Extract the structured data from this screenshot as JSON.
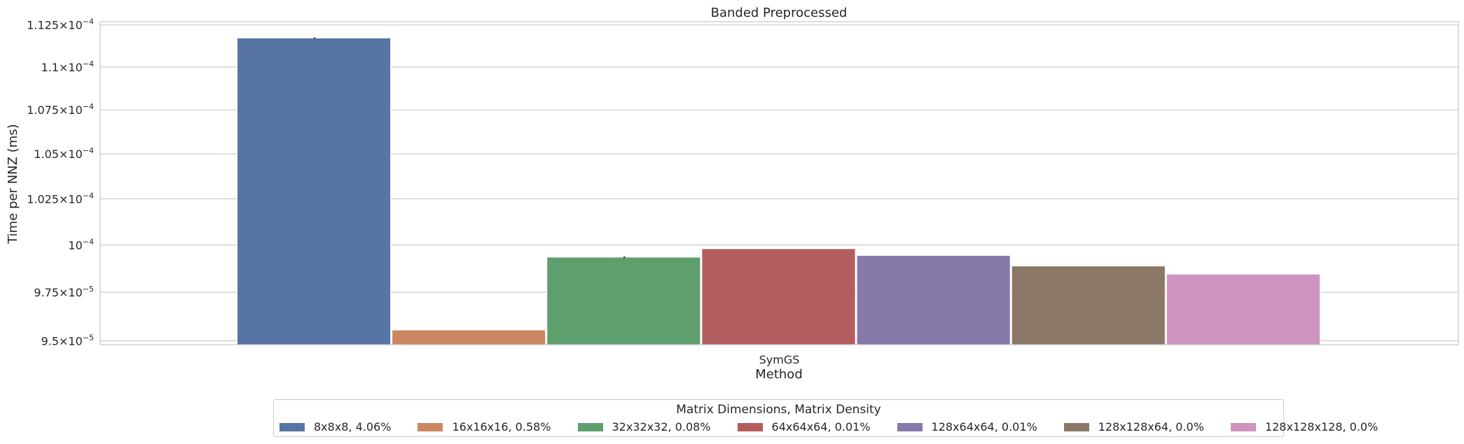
{
  "chart_data": {
    "type": "bar",
    "title": "Banded Preprocessed",
    "xlabel": "Method",
    "ylabel": "Time per NNZ (ms)",
    "categories": [
      "SymGS"
    ],
    "ylim": [
      9.48e-05,
      0.0001127
    ],
    "yscale": "log",
    "yticks": [
      {
        "value": 9.5e-05,
        "mant": "9.5",
        "exp": "−5"
      },
      {
        "value": 9.75e-05,
        "mant": "9.75",
        "exp": "−5"
      },
      {
        "value": 0.0001,
        "mant": "",
        "exp": "−4"
      },
      {
        "value": 0.0001025,
        "mant": "1.025",
        "exp": "−4"
      },
      {
        "value": 0.000105,
        "mant": "1.05",
        "exp": "−4"
      },
      {
        "value": 0.0001075,
        "mant": "1.075",
        "exp": "−4"
      },
      {
        "value": 0.00011,
        "mant": "1.1",
        "exp": "−4"
      },
      {
        "value": 0.0001125,
        "mant": "1.125",
        "exp": "−4"
      }
    ],
    "grid": "y",
    "legend_title": "Matrix Dimensions, Matrix Density",
    "legend_position": "bottom-center",
    "series": [
      {
        "name": "8x8x8, 4.06%",
        "values": [
          0.00011172
        ],
        "err": [
          3e-08
        ],
        "color": "#5874a5"
      },
      {
        "name": "16x16x16, 0.58%",
        "values": [
          9.555e-05
        ],
        "err": null,
        "color": "#cc8762"
      },
      {
        "name": "32x32x32, 0.08%",
        "values": [
          9.935e-05
        ],
        "err": [
          3e-08
        ],
        "color": "#5f9f6d"
      },
      {
        "name": "64x64x64, 0.01%",
        "values": [
          9.98e-05
        ],
        "err": null,
        "color": "#b45d5f"
      },
      {
        "name": "128x64x64, 0.01%",
        "values": [
          9.944e-05
        ],
        "err": null,
        "color": "#8579aa"
      },
      {
        "name": "128x128x64, 0.0%",
        "values": [
          9.888e-05
        ],
        "err": null,
        "color": "#8c7866"
      },
      {
        "name": "128x128x128, 0.0%",
        "values": [
          9.845e-05
        ],
        "err": null,
        "color": "#cf94bf"
      }
    ]
  }
}
